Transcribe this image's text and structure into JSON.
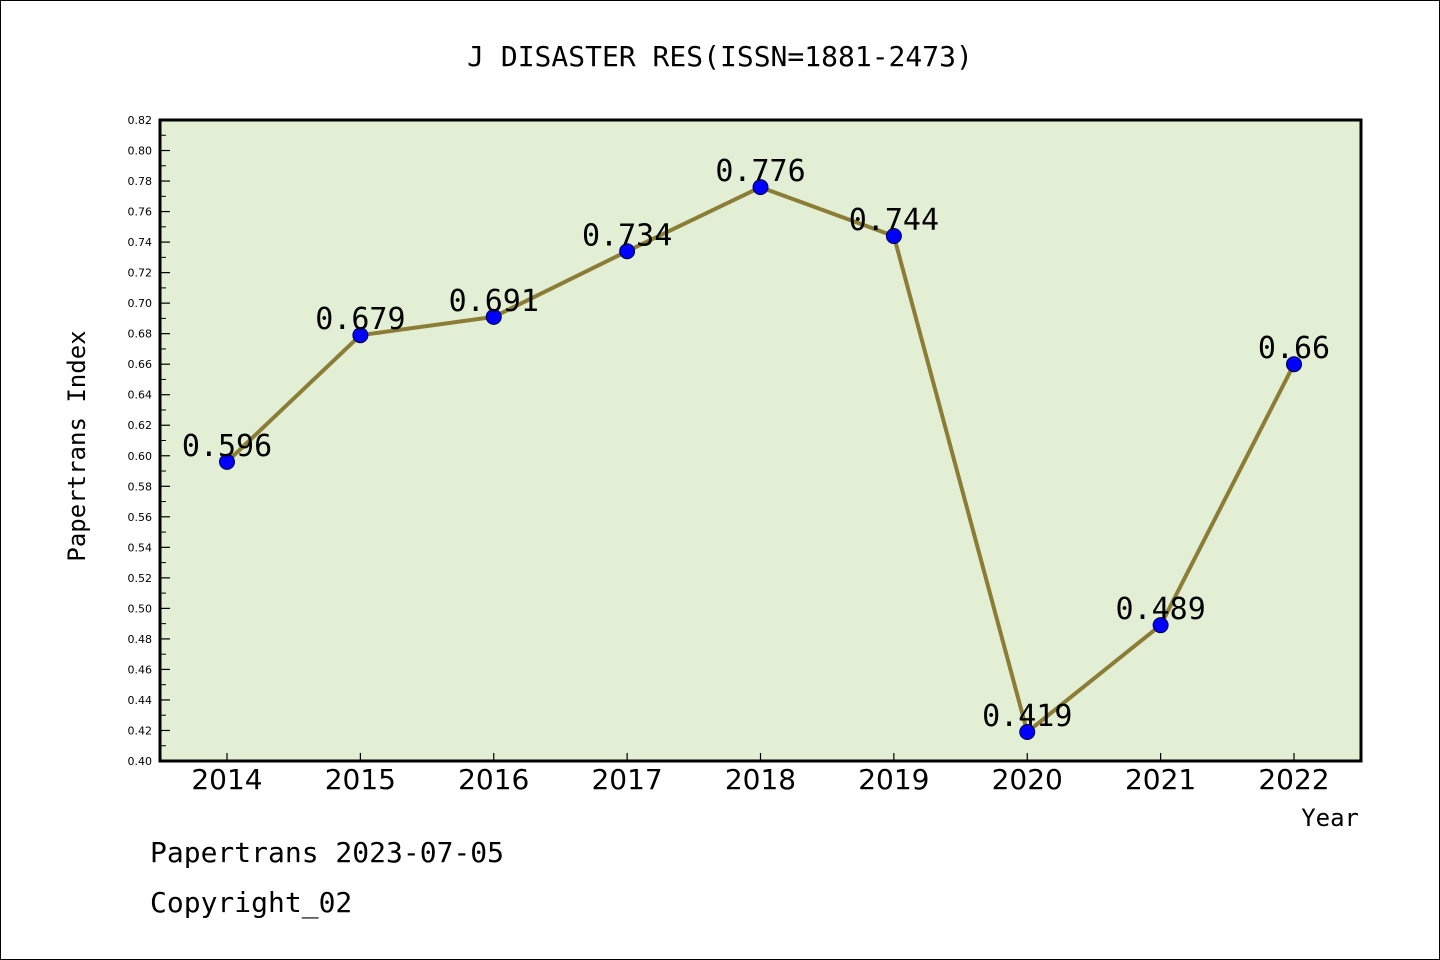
{
  "chart_data": {
    "type": "line",
    "title": "J DISASTER RES(ISSN=1881-2473)",
    "xlabel": "Year",
    "ylabel": "Papertrans Index",
    "categories": [
      "2014",
      "2015",
      "2016",
      "2017",
      "2018",
      "2019",
      "2020",
      "2021",
      "2022"
    ],
    "values": [
      0.596,
      0.679,
      0.691,
      0.734,
      0.776,
      0.744,
      0.419,
      0.489,
      0.66
    ],
    "data_labels": [
      "0.596",
      "0.679",
      "0.691",
      "0.734",
      "0.776",
      "0.744",
      "0.419",
      "0.489",
      "0.66"
    ],
    "ylim": [
      0.4,
      0.82
    ],
    "yticks": [
      "0.40",
      "0.42",
      "0.44",
      "0.46",
      "0.48",
      "0.50",
      "0.52",
      "0.54",
      "0.56",
      "0.58",
      "0.60",
      "0.62",
      "0.64",
      "0.66",
      "0.68",
      "0.70",
      "0.72",
      "0.74",
      "0.76",
      "0.78",
      "0.80",
      "0.82"
    ],
    "grid": false,
    "colors": {
      "plot_background": "#e2efd5",
      "line": "#8b7d35",
      "marker": "#0000ff"
    }
  },
  "footer": {
    "line1": "Papertrans 2023-07-05",
    "line2": "Copyright_02"
  }
}
